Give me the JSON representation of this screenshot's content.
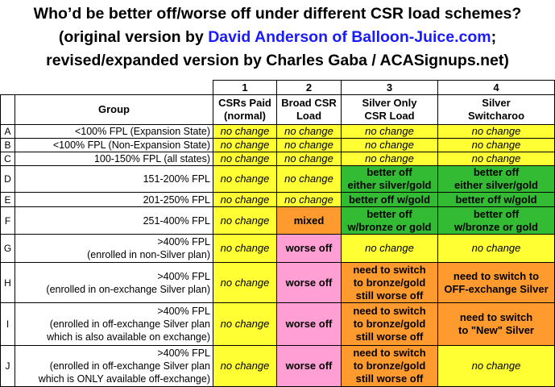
{
  "title": {
    "line1": "Who’d be better off/worse off under different CSR load schemes?",
    "line2_before": "(original version by ",
    "line2_link": "David Anderson of Balloon-Juice.com",
    "line2_after": ";",
    "line3": "revised/expanded version by Charles Gaba / ACASignups.net)"
  },
  "table": {
    "numbers": [
      "1",
      "2",
      "3",
      "4"
    ],
    "group_header": "Group",
    "columns": [
      "CSRs Paid\n(normal)",
      "Broad CSR\nLoad",
      "Silver Only\nCSR Load",
      "Silver\nSwitcharoo"
    ],
    "rows": [
      {
        "letter": "A",
        "group": "<100% FPL (Expansion State)",
        "cells": [
          {
            "text": "no change",
            "color": "#ffff33"
          },
          {
            "text": "no change",
            "color": "#ffff33"
          },
          {
            "text": "no change",
            "color": "#ffff33"
          },
          {
            "text": "no change",
            "color": "#ffff33"
          }
        ]
      },
      {
        "letter": "B",
        "group": "<100% FPL (Non-Expansion State)",
        "cells": [
          {
            "text": "no change",
            "color": "#ffff33"
          },
          {
            "text": "no change",
            "color": "#ffff33"
          },
          {
            "text": "no change",
            "color": "#ffff33"
          },
          {
            "text": "no change",
            "color": "#ffff33"
          }
        ]
      },
      {
        "letter": "C",
        "group": "100-150% FPL (all states)",
        "cells": [
          {
            "text": "no change",
            "color": "#ffff33"
          },
          {
            "text": "no change",
            "color": "#ffff33"
          },
          {
            "text": "no change",
            "color": "#ffff33"
          },
          {
            "text": "no change",
            "color": "#ffff33"
          }
        ]
      },
      {
        "letter": "D",
        "group": "151-200% FPL",
        "cells": [
          {
            "text": "no change",
            "color": "#ffff33"
          },
          {
            "text": "no change",
            "color": "#ffff33"
          },
          {
            "text": "better off\neither silver/gold",
            "color": "#33bb33"
          },
          {
            "text": "better off\neither silver/gold",
            "color": "#33bb33"
          }
        ]
      },
      {
        "letter": "E",
        "group": "201-250% FPL",
        "cells": [
          {
            "text": "no change",
            "color": "#ffff33"
          },
          {
            "text": "no change",
            "color": "#ffff33"
          },
          {
            "text": "better off w/gold",
            "color": "#33bb33"
          },
          {
            "text": "better off w/gold",
            "color": "#33bb33"
          }
        ]
      },
      {
        "letter": "F",
        "group": "251-400% FPL",
        "cells": [
          {
            "text": "no change",
            "color": "#ffff33"
          },
          {
            "text": "mixed",
            "color": "#ff9a2e"
          },
          {
            "text": "better off\nw/bronze or gold",
            "color": "#33bb33"
          },
          {
            "text": "better off\nw/bronze or gold",
            "color": "#33bb33"
          }
        ]
      },
      {
        "letter": "G",
        "group": ">400% FPL\n(enrolled in non-Silver plan)",
        "cells": [
          {
            "text": "no change",
            "color": "#ffff33"
          },
          {
            "text": "worse off",
            "color": "#ff9fd4"
          },
          {
            "text": "no change",
            "color": "#ffff33"
          },
          {
            "text": "no change",
            "color": "#ffff33"
          }
        ]
      },
      {
        "letter": "H",
        "group": ">400% FPL\n(enrolled in on-exchange Silver plan)",
        "cells": [
          {
            "text": "no change",
            "color": "#ffff33"
          },
          {
            "text": "worse off",
            "color": "#ff9fd4"
          },
          {
            "text": "need to switch\nto bronze/gold\nstill worse off",
            "color": "#ff9a2e"
          },
          {
            "text": "need to switch to\nOFF-exchange Silver",
            "color": "#ff9a2e"
          }
        ]
      },
      {
        "letter": "I",
        "group": ">400% FPL\n(enrolled in off-exchange Silver plan\nwhich is also available on exchange)",
        "cells": [
          {
            "text": "no change",
            "color": "#ffff33"
          },
          {
            "text": "worse off",
            "color": "#ff9fd4"
          },
          {
            "text": "need to switch\nto bronze/gold\nstill worse off",
            "color": "#ff9a2e"
          },
          {
            "text": "need to switch\nto \"New\" Silver",
            "color": "#ff9a2e"
          }
        ]
      },
      {
        "letter": "J",
        "group": ">400% FPL\n(enrolled in off-exchange Silver plan\nwhich is ONLY available off-exchange)",
        "cells": [
          {
            "text": "no change",
            "color": "#ffff33"
          },
          {
            "text": "worse off",
            "color": "#ff9fd4"
          },
          {
            "text": "need to switch\nto bronze/gold\nstill worse off",
            "color": "#ff9a2e"
          },
          {
            "text": "no change",
            "color": "#ffff33"
          }
        ]
      }
    ]
  }
}
